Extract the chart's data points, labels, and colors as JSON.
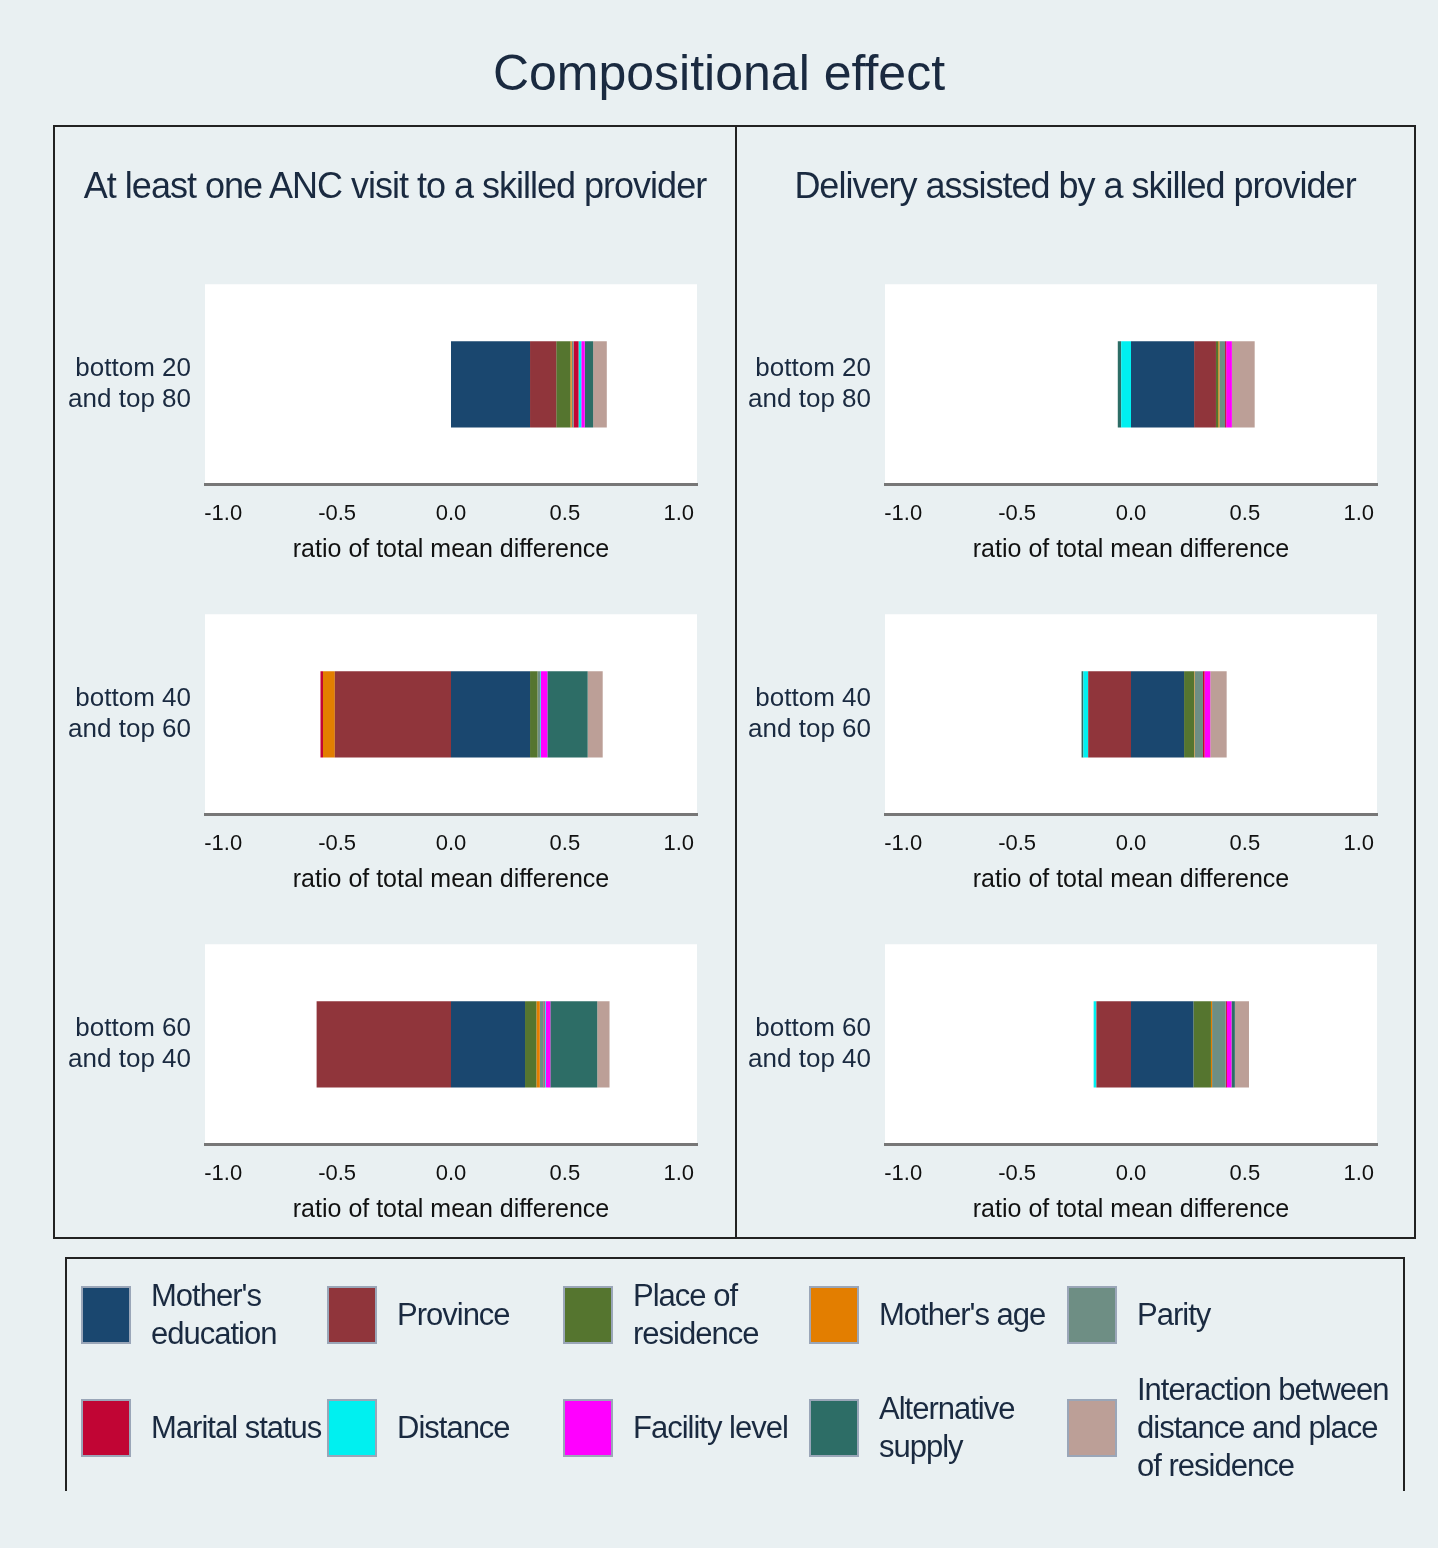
{
  "chart_data": [
    {
      "type": "bar",
      "orientation": "horizontal",
      "stacked": true,
      "legend": "bottom",
      "title": "Compositional effect",
      "subtitle": "At least one ANC visit to a skilled provider",
      "xlabel": "ratio of total mean difference",
      "categories": [
        "bottom 20 and top 80"
      ],
      "xlim": [
        -1.08,
        1.08
      ],
      "xticks": [
        {
          "value": -1,
          "label": "-1.0"
        },
        {
          "value": -0.5,
          "label": "-0.5"
        },
        {
          "value": 0,
          "label": "0.0"
        },
        {
          "value": 0.5,
          "label": "0.5"
        },
        {
          "value": 1,
          "label": "1.0"
        }
      ],
      "series": [
        {
          "name": "Mother's education",
          "color": "#1a476f",
          "values": [
            0.347
          ]
        },
        {
          "name": "Province",
          "color": "#90353b",
          "values": [
            0.115
          ]
        },
        {
          "name": "Place of residence",
          "color": "#55752f",
          "values": [
            0.062
          ]
        },
        {
          "name": "Mother's age",
          "color": "#e37e00",
          "values": [
            0.006
          ]
        },
        {
          "name": "Parity",
          "color": "#6e8e84",
          "values": [
            0.008
          ]
        },
        {
          "name": "Marital status",
          "color": "#c10534",
          "values": [
            0.022
          ]
        },
        {
          "name": "Distance",
          "color": "#00f0f0",
          "values": [
            0.012
          ]
        },
        {
          "name": "Facility level",
          "color": "#ff00ff",
          "values": [
            0.015
          ]
        },
        {
          "name": "Alternative supply",
          "color": "#2d6d66",
          "values": [
            0.037
          ]
        },
        {
          "name": "Interaction between distance and place of residence",
          "color": "#bc9f97",
          "values": [
            0.06
          ]
        }
      ]
    },
    {
      "type": "bar",
      "orientation": "horizontal",
      "stacked": true,
      "subtitle": "Delivery assisted by a skilled provider",
      "xlabel": "ratio of total mean difference",
      "categories": [
        "bottom 20 and top 80"
      ],
      "xlim": [
        -1.08,
        1.08
      ],
      "xticks": [
        {
          "value": -1,
          "label": "-1.0"
        },
        {
          "value": -0.5,
          "label": "-0.5"
        },
        {
          "value": 0,
          "label": "0.0"
        },
        {
          "value": 0.5,
          "label": "0.5"
        },
        {
          "value": 1,
          "label": "1.0"
        }
      ],
      "series": [
        {
          "color": "#1a476f",
          "values": [
            0.277
          ]
        },
        {
          "color": "#90353b",
          "values": [
            0.096
          ]
        },
        {
          "color": "#55752f",
          "values": [
            0.01
          ]
        },
        {
          "color": "#e37e00",
          "values": [
            0.005
          ]
        },
        {
          "color": "#6e8e84",
          "values": [
            0.025
          ]
        },
        {
          "color": "#c10534",
          "values": [
            0.005
          ]
        },
        {
          "color": "#00f0f0",
          "values": [
            -0.043
          ]
        },
        {
          "color": "#ff00ff",
          "values": [
            0.025
          ]
        },
        {
          "color": "#2d6d66",
          "values": [
            -0.015
          ]
        },
        {
          "color": "#bc9f97",
          "values": [
            0.1
          ]
        }
      ]
    },
    {
      "type": "bar",
      "orientation": "horizontal",
      "stacked": true,
      "xlabel": "ratio of total mean difference",
      "categories": [
        "bottom 40 and top 60"
      ],
      "xlim": [
        -1.08,
        1.08
      ],
      "xticks": [
        {
          "value": -1,
          "label": "-1.0"
        },
        {
          "value": -0.5,
          "label": "-0.5"
        },
        {
          "value": 0,
          "label": "0.0"
        },
        {
          "value": 0.5,
          "label": "0.5"
        },
        {
          "value": 1,
          "label": "1.0"
        }
      ],
      "series": [
        {
          "color": "#1a476f",
          "values": [
            0.347
          ]
        },
        {
          "color": "#90353b",
          "values": [
            -0.51
          ]
        },
        {
          "color": "#55752f",
          "values": [
            0.033
          ]
        },
        {
          "color": "#e37e00",
          "values": [
            -0.052
          ]
        },
        {
          "color": "#6e8e84",
          "values": [
            0.012
          ]
        },
        {
          "color": "#c10534",
          "values": [
            -0.011
          ]
        },
        {
          "color": "#00f0f0",
          "values": [
            0.003
          ]
        },
        {
          "color": "#ff00ff",
          "values": [
            0.028
          ]
        },
        {
          "color": "#2d6d66",
          "values": [
            0.177
          ]
        },
        {
          "color": "#bc9f97",
          "values": [
            0.066
          ]
        }
      ]
    },
    {
      "type": "bar",
      "orientation": "horizontal",
      "stacked": true,
      "xlabel": "ratio of total mean difference",
      "categories": [
        "bottom 40 and top 60"
      ],
      "xlim": [
        -1.08,
        1.08
      ],
      "xticks": [
        {
          "value": -1,
          "label": "-1.0"
        },
        {
          "value": -0.5,
          "label": "-0.5"
        },
        {
          "value": 0,
          "label": "0.0"
        },
        {
          "value": 0.5,
          "label": "0.5"
        },
        {
          "value": 1,
          "label": "1.0"
        }
      ],
      "series": [
        {
          "color": "#1a476f",
          "values": [
            0.233
          ]
        },
        {
          "color": "#90353b",
          "values": [
            -0.188
          ]
        },
        {
          "color": "#55752f",
          "values": [
            0.044
          ]
        },
        {
          "color": "#e37e00",
          "values": [
            0.002
          ]
        },
        {
          "color": "#6e8e84",
          "values": [
            0.037
          ]
        },
        {
          "color": "#c10534",
          "values": [
            0.007
          ]
        },
        {
          "color": "#00f0f0",
          "values": [
            -0.021
          ]
        },
        {
          "color": "#ff00ff",
          "values": [
            0.025
          ]
        },
        {
          "color": "#2d6d66",
          "values": [
            -0.008
          ]
        },
        {
          "color": "#bc9f97",
          "values": [
            0.072
          ]
        }
      ]
    },
    {
      "type": "bar",
      "orientation": "horizontal",
      "stacked": true,
      "xlabel": "ratio of total mean difference",
      "categories": [
        "bottom 60 and top 40"
      ],
      "xlim": [
        -1.08,
        1.08
      ],
      "xticks": [
        {
          "value": -1,
          "label": "-1.0"
        },
        {
          "value": -0.5,
          "label": "-0.5"
        },
        {
          "value": 0,
          "label": "0.0"
        },
        {
          "value": 0.5,
          "label": "0.5"
        },
        {
          "value": 1,
          "label": "1.0"
        }
      ],
      "series": [
        {
          "color": "#1a476f",
          "values": [
            0.325
          ]
        },
        {
          "color": "#90353b",
          "values": [
            -0.59
          ]
        },
        {
          "color": "#55752f",
          "values": [
            0.05
          ]
        },
        {
          "color": "#e37e00",
          "values": [
            0.015
          ]
        },
        {
          "color": "#6e8e84",
          "values": [
            0.016
          ]
        },
        {
          "color": "#c10534",
          "values": [
            0.005
          ]
        },
        {
          "color": "#00f0f0",
          "values": [
            0.005
          ]
        },
        {
          "color": "#ff00ff",
          "values": [
            0.02
          ]
        },
        {
          "color": "#2d6d66",
          "values": [
            0.206
          ]
        },
        {
          "color": "#bc9f97",
          "values": [
            0.054
          ]
        }
      ]
    },
    {
      "type": "bar",
      "orientation": "horizontal",
      "stacked": true,
      "xlabel": "ratio of total mean difference",
      "categories": [
        "bottom 60 and top 40"
      ],
      "xlim": [
        -1.08,
        1.08
      ],
      "xticks": [
        {
          "value": -1,
          "label": "-1.0"
        },
        {
          "value": -0.5,
          "label": "-0.5"
        },
        {
          "value": 0,
          "label": "0.0"
        },
        {
          "value": 0.5,
          "label": "0.5"
        },
        {
          "value": 1,
          "label": "1.0"
        }
      ],
      "series": [
        {
          "color": "#1a476f",
          "values": [
            0.274
          ]
        },
        {
          "color": "#90353b",
          "values": [
            -0.152
          ]
        },
        {
          "color": "#55752f",
          "values": [
            0.077
          ]
        },
        {
          "color": "#e37e00",
          "values": [
            0.005
          ]
        },
        {
          "color": "#6e8e84",
          "values": [
            0.06
          ]
        },
        {
          "color": "#c10534",
          "values": [
            0.005
          ]
        },
        {
          "color": "#00f0f0",
          "values": [
            -0.012
          ]
        },
        {
          "color": "#ff00ff",
          "values": [
            0.02
          ]
        },
        {
          "color": "#2d6d66",
          "values": [
            0.015
          ]
        },
        {
          "color": "#bc9f97",
          "values": [
            0.062
          ]
        }
      ]
    }
  ]
}
